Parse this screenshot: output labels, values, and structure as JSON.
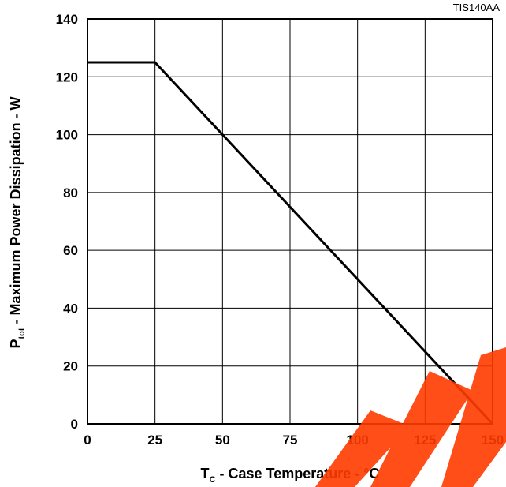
{
  "chart_data": {
    "type": "line",
    "figure_id": "TIS140AA",
    "x_axis": {
      "label_main": "T",
      "label_sub": "C",
      "label_rest": " - Case Temperature - °C",
      "range": [
        0,
        150
      ],
      "ticks": [
        0,
        25,
        50,
        75,
        100,
        125,
        150
      ]
    },
    "y_axis": {
      "label_main": "P",
      "label_sub": "tot",
      "label_rest": " - Maximum Power Dissipation - W",
      "range": [
        0,
        140
      ],
      "ticks": [
        0,
        20,
        40,
        60,
        80,
        100,
        120,
        140
      ]
    },
    "grid": true,
    "series": [
      {
        "x": [
          0,
          25,
          150
        ],
        "y": [
          125,
          125,
          0
        ]
      }
    ],
    "colors": {
      "line": "#000000",
      "grid": "#000000",
      "watermark": "#ff3b00"
    }
  }
}
